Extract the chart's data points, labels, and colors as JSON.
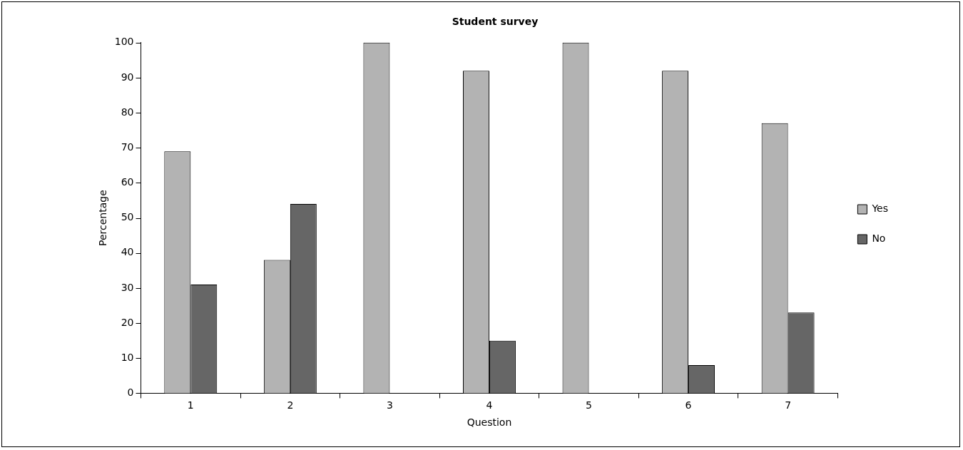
{
  "chart_data": {
    "type": "bar",
    "title": "Student survey",
    "xlabel": "Question",
    "ylabel": "Percentage",
    "categories": [
      "1",
      "2",
      "3",
      "4",
      "5",
      "6",
      "7"
    ],
    "series": [
      {
        "name": "Yes",
        "color": "#b3b3b3",
        "values": [
          69,
          38,
          100,
          92,
          100,
          92,
          77
        ]
      },
      {
        "name": "No",
        "color": "#666666",
        "values": [
          31,
          54,
          0,
          15,
          0,
          8,
          23
        ]
      }
    ],
    "ylim": [
      0,
      100
    ],
    "yticks": [
      0,
      10,
      20,
      30,
      40,
      50,
      60,
      70,
      80,
      90,
      100
    ],
    "legend": "right"
  }
}
